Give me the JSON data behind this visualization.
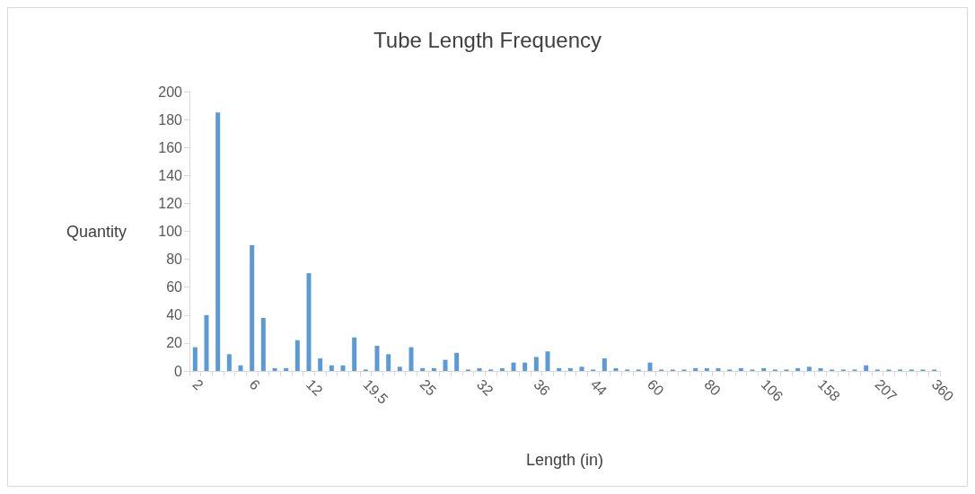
{
  "chart_data": {
    "type": "bar",
    "title": "Tube Length Frequency",
    "xlabel": "Length (in)",
    "ylabel": "Quantity",
    "categories": [
      "2",
      null,
      null,
      null,
      null,
      "6",
      null,
      null,
      null,
      null,
      "12",
      null,
      null,
      null,
      null,
      "19.5",
      null,
      null,
      null,
      null,
      "25",
      null,
      null,
      null,
      null,
      "32",
      null,
      null,
      null,
      null,
      "36",
      null,
      null,
      null,
      null,
      "44",
      null,
      null,
      null,
      null,
      "60",
      null,
      null,
      null,
      null,
      "80",
      null,
      null,
      null,
      null,
      "106",
      null,
      null,
      null,
      null,
      "158",
      null,
      null,
      null,
      null,
      "207",
      null,
      null,
      null,
      null,
      "360"
    ],
    "values": [
      17,
      40,
      185,
      12,
      4,
      90,
      38,
      2,
      2,
      22,
      70,
      9,
      4,
      4,
      24,
      1,
      18,
      12,
      3,
      17,
      2,
      2,
      8,
      13,
      1,
      2,
      1,
      2,
      6,
      6,
      10,
      14,
      2,
      2,
      3,
      1,
      9,
      2,
      1,
      1,
      6,
      1,
      1,
      1,
      2,
      2,
      2,
      1,
      2,
      1,
      2,
      1,
      1,
      2,
      3,
      2,
      1,
      1,
      1,
      4,
      1,
      1,
      1,
      1,
      1,
      1
    ],
    "color": "#5b9bd5",
    "ylim": [
      0,
      200
    ],
    "yticks": [
      0,
      20,
      40,
      60,
      80,
      100,
      120,
      140,
      160,
      180,
      200
    ],
    "grid": false
  }
}
